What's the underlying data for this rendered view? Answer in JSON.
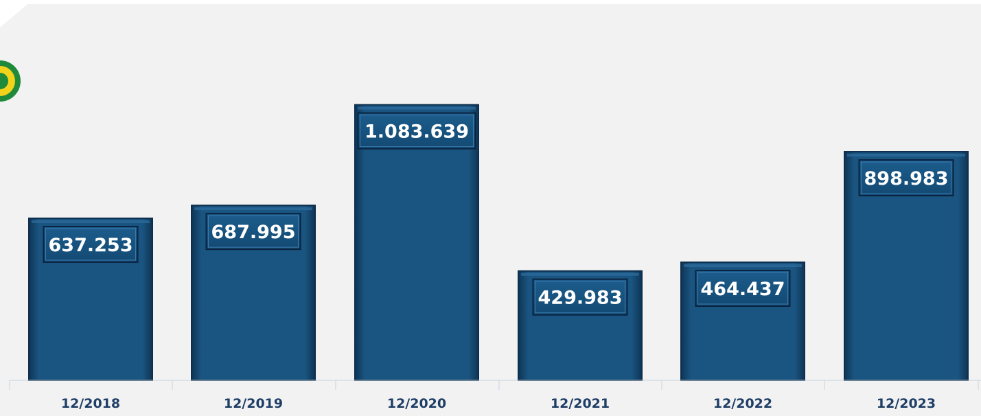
{
  "colors": {
    "plot_background": "#f2f2f2",
    "bar_fill": "#1a5480",
    "bar_edge": "#0d2f4d",
    "label_box_fill": "#17527e",
    "axis_text": "#1f3e66",
    "axis_line": "#c8d3e0",
    "logo_green": "#1e8a3a",
    "logo_yellow": "#f2d21b"
  },
  "logo": {
    "icon": "green-yellow-emblem-icon"
  },
  "chart_data": {
    "type": "bar",
    "categories": [
      "12/2018",
      "12/2019",
      "12/2020",
      "12/2021",
      "12/2022",
      "12/2023"
    ],
    "values": [
      637253,
      687995,
      1083639,
      429983,
      464437,
      898983
    ],
    "value_labels": [
      "637.253",
      "687.995",
      "1.083.639",
      "429.983",
      "464.437",
      "898.983"
    ],
    "title": "",
    "xlabel": "",
    "ylabel": "",
    "ylim": [
      0,
      1300000
    ],
    "grid": false,
    "legend": "none"
  }
}
